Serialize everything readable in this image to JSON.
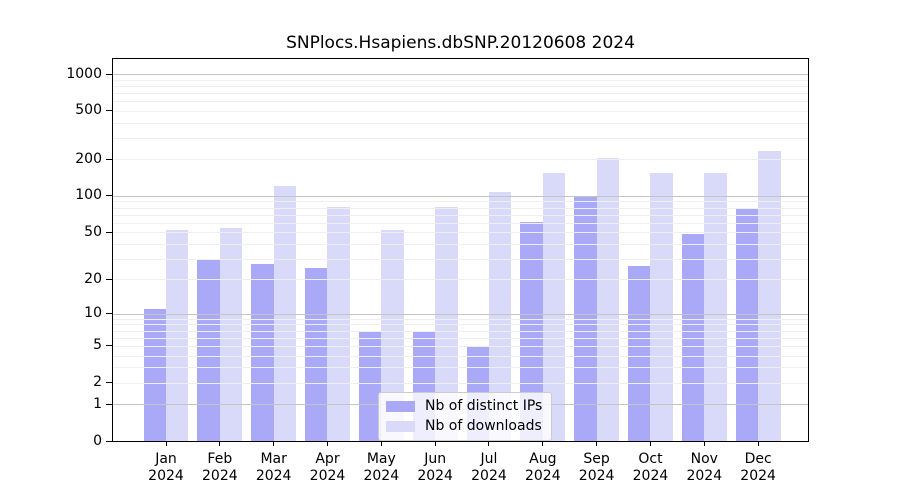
{
  "title": "SNPlocs.Hsapiens.dbSNP.20120608 2024",
  "chart_data": {
    "type": "bar",
    "title": "SNPlocs.Hsapiens.dbSNP.20120608 2024",
    "x_ticks": [
      {
        "month": "Jan",
        "year": "2024"
      },
      {
        "month": "Feb",
        "year": "2024"
      },
      {
        "month": "Mar",
        "year": "2024"
      },
      {
        "month": "Apr",
        "year": "2024"
      },
      {
        "month": "May",
        "year": "2024"
      },
      {
        "month": "Jun",
        "year": "2024"
      },
      {
        "month": "Jul",
        "year": "2024"
      },
      {
        "month": "Aug",
        "year": "2024"
      },
      {
        "month": "Sep",
        "year": "2024"
      },
      {
        "month": "Oct",
        "year": "2024"
      },
      {
        "month": "Nov",
        "year": "2024"
      },
      {
        "month": "Dec",
        "year": "2024"
      }
    ],
    "series": [
      {
        "name": "Nb of distinct IPs",
        "color": "#a9a9f7",
        "values": [
          11,
          30,
          27,
          25,
          7,
          7,
          5,
          61,
          97,
          26,
          48,
          78
        ]
      },
      {
        "name": "Nb of downloads",
        "color": "#d9d9f9",
        "values": [
          52,
          54,
          120,
          81,
          52,
          81,
          107,
          154,
          205,
          153,
          155,
          235
        ]
      }
    ],
    "y_ticks": [
      0,
      1,
      2,
      5,
      10,
      20,
      50,
      100,
      200,
      500,
      1000
    ],
    "y_scale": "log1p",
    "ylim": [
      0,
      1350
    ],
    "xlabel": "",
    "ylabel": "",
    "grid": {
      "orientation": "horizontal",
      "major_lines_at": [
        1,
        10,
        100,
        1000
      ],
      "minor_lines": "2-9 per decade",
      "drawn_above_bars": true
    },
    "legend_position": "lower center inside plot"
  },
  "colors": {
    "distinct_ips_bar": "#a9a9f7",
    "downloads_bar": "#d9d9f9",
    "grid_major": "#c4c4c4",
    "grid_minor": "#efefef",
    "axis_and_text": "#000000",
    "legend_border": "#cccccc",
    "legend_background": "rgba(255,255,255,0.8)",
    "background": "#ffffff"
  }
}
